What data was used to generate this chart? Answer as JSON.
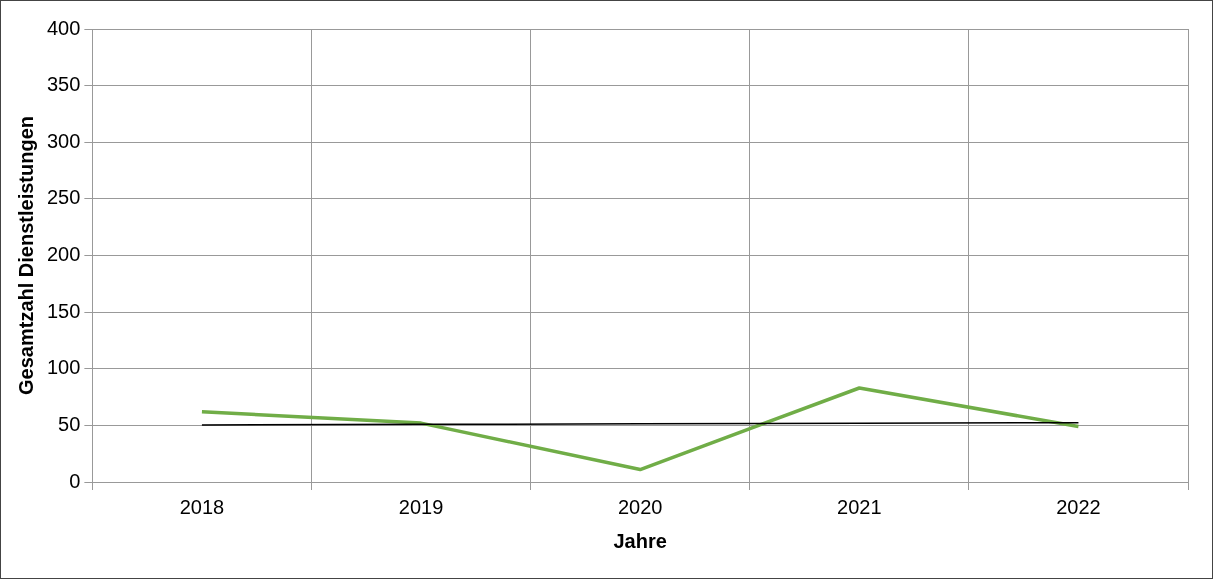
{
  "chart_data": {
    "type": "line",
    "xlabel": "Jahre",
    "ylabel": "Gesamtzahl Dienstleistungen",
    "categories": [
      "2018",
      "2019",
      "2020",
      "2021",
      "2022"
    ],
    "series": [
      {
        "color": "#70ad47",
        "values": [
          62,
          52,
          11,
          83,
          49
        ]
      },
      {
        "color": "#000000",
        "values": [
          50.4,
          50.9,
          51.4,
          51.9,
          52.4
        ]
      }
    ],
    "ylim": [
      0,
      400
    ],
    "yticks": [
      0,
      50,
      100,
      150,
      200,
      250,
      300,
      350,
      400
    ],
    "grid": true,
    "legend": false,
    "marker": "none",
    "line_style": "solid"
  }
}
